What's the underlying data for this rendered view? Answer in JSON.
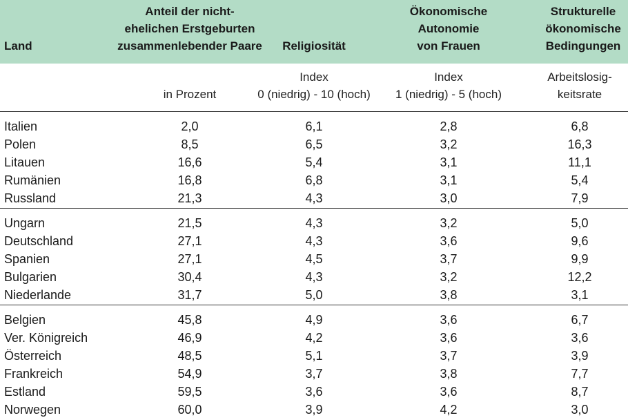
{
  "headers": {
    "land": "Land",
    "anteil": "Anteil der nicht-\nehelichen Erstgeburten\nzusammenlebender Paare",
    "religiositaet": "Religiosität",
    "autonomie": "Ökonomische\nAutonomie\nvon Frauen",
    "strukturell": "Strukturelle\nökonomische\nBedingungen"
  },
  "units": {
    "anteil": "in Prozent",
    "religiositaet": "Index\n0 (niedrig) - 10 (hoch)",
    "autonomie": "Index\n1 (niedrig) - 5 (hoch)",
    "strukturell": "Arbeitslosig-\nkeitsrate"
  },
  "groups": [
    [
      [
        "Italien",
        "2,0",
        "6,1",
        "2,8",
        "6,8"
      ],
      [
        "Polen",
        "8,5",
        "6,5",
        "3,2",
        "16,3"
      ],
      [
        "Litauen",
        "16,6",
        "5,4",
        "3,1",
        "11,1"
      ],
      [
        "Rumänien",
        "16,8",
        "6,8",
        "3,1",
        "5,4"
      ],
      [
        "Russland",
        "21,3",
        "4,3",
        "3,0",
        "7,9"
      ]
    ],
    [
      [
        "Ungarn",
        "21,5",
        "4,3",
        "3,2",
        "5,0"
      ],
      [
        "Deutschland",
        "27,1",
        "4,3",
        "3,6",
        "9,6"
      ],
      [
        "Spanien",
        "27,1",
        "4,5",
        "3,7",
        "9,9"
      ],
      [
        "Bulgarien",
        "30,4",
        "4,3",
        "3,2",
        "12,2"
      ],
      [
        "Niederlande",
        "31,7",
        "5,0",
        "3,8",
        "3,1"
      ]
    ],
    [
      [
        "Belgien",
        "45,8",
        "4,9",
        "3,6",
        "6,7"
      ],
      [
        "Ver. Königreich",
        "46,9",
        "4,2",
        "3,6",
        "3,6"
      ],
      [
        "Österreich",
        "48,5",
        "5,1",
        "3,7",
        "3,9"
      ],
      [
        "Frankreich",
        "54,9",
        "3,7",
        "3,8",
        "7,7"
      ],
      [
        "Estland",
        "59,5",
        "3,6",
        "3,6",
        "8,7"
      ],
      [
        "Norwegen",
        "60,0",
        "3,9",
        "4,2",
        "3,0"
      ]
    ]
  ]
}
